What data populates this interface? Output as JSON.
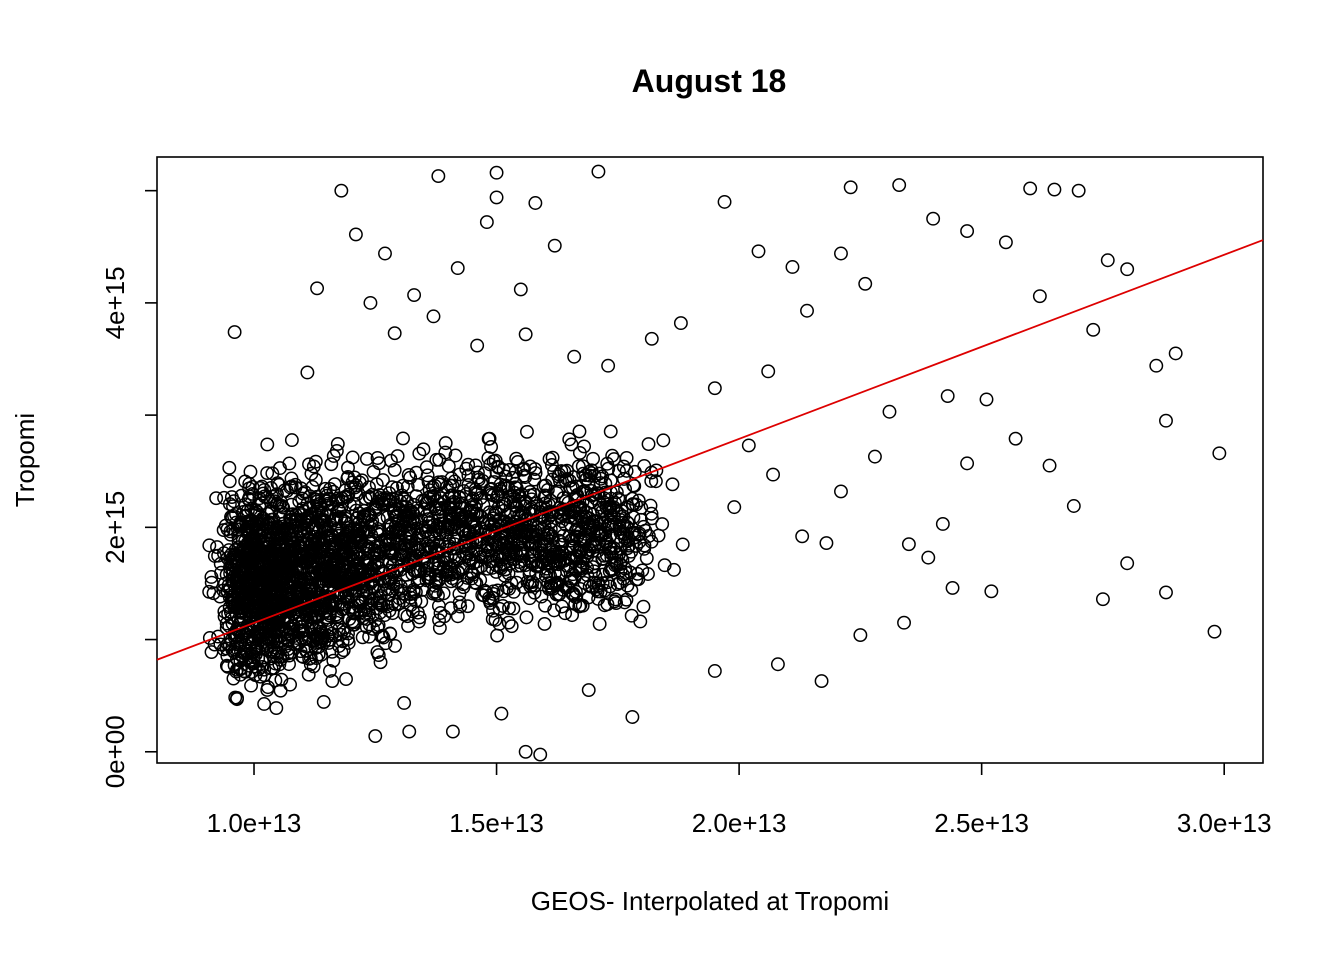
{
  "chart_data": {
    "type": "scatter",
    "title": "August 18",
    "xlabel": "GEOS- Interpolated at Tropomi",
    "ylabel": "Tropomi",
    "xlim": [
      8000000000000.0,
      30800000000000.0
    ],
    "ylim": [
      -100000000000000.0,
      5300000000000000.0
    ],
    "x_ticks": [
      {
        "value": 10000000000000.0,
        "label": "1.0e+13"
      },
      {
        "value": 15000000000000.0,
        "label": "1.5e+13"
      },
      {
        "value": 20000000000000.0,
        "label": "2.0e+13"
      },
      {
        "value": 25000000000000.0,
        "label": "2.5e+13"
      },
      {
        "value": 30000000000000.0,
        "label": "3.0e+13"
      }
    ],
    "y_ticks": [
      {
        "value": 0,
        "label": "0e+00"
      },
      {
        "value": 1000000000000000.0,
        "label": ""
      },
      {
        "value": 2000000000000000.0,
        "label": "2e+15"
      },
      {
        "value": 3000000000000000.0,
        "label": ""
      },
      {
        "value": 4000000000000000.0,
        "label": "4e+15"
      },
      {
        "value": 5000000000000000.0,
        "label": ""
      }
    ],
    "grid": false,
    "marker": "open-circle",
    "point_color": "#000000",
    "fit_line": {
      "color": "#dd0000",
      "x": [
        8000000000000.0,
        30800000000000.0
      ],
      "y": [
        820000000000000.0,
        4560000000000000.0
      ]
    },
    "points": [
      [
        9600000000000.0,
        3740000000000000.0
      ],
      [
        11800000000000.0,
        5000000000000000.0
      ],
      [
        12100000000000.0,
        4610000000000000.0
      ],
      [
        13800000000000.0,
        5130000000000000.0
      ],
      [
        15000000000000.0,
        5160000000000000.0
      ],
      [
        15000000000000.0,
        4940000000000000.0
      ],
      [
        17100000000000.0,
        5170000000000000.0
      ],
      [
        15800000000000.0,
        4890000000000000.0
      ],
      [
        14800000000000.0,
        4720000000000000.0
      ],
      [
        12700000000000.0,
        4440000000000000.0
      ],
      [
        11300000000000.0,
        4130000000000000.0
      ],
      [
        12400000000000.0,
        4000000000000000.0
      ],
      [
        13300000000000.0,
        4070000000000000.0
      ],
      [
        14200000000000.0,
        4310000000000000.0
      ],
      [
        15500000000000.0,
        4120000000000000.0
      ],
      [
        16200000000000.0,
        4510000000000000.0
      ],
      [
        13700000000000.0,
        3880000000000000.0
      ],
      [
        12900000000000.0,
        3730000000000000.0
      ],
      [
        14600000000000.0,
        3620000000000000.0
      ],
      [
        11100000000000.0,
        3380000000000000.0
      ],
      [
        15600000000000.0,
        3720000000000000.0
      ],
      [
        16600000000000.0,
        3520000000000000.0
      ],
      [
        17300000000000.0,
        3440000000000000.0
      ],
      [
        18200000000000.0,
        3680000000000000.0
      ],
      [
        18800000000000.0,
        3820000000000000.0
      ],
      [
        19700000000000.0,
        4900000000000000.0
      ],
      [
        20400000000000.0,
        4460000000000000.0
      ],
      [
        21100000000000.0,
        4320000000000000.0
      ],
      [
        21400000000000.0,
        3930000000000000.0
      ],
      [
        20600000000000.0,
        3390000000000000.0
      ],
      [
        19500000000000.0,
        3240000000000000.0
      ],
      [
        22300000000000.0,
        5030000000000000.0
      ],
      [
        22100000000000.0,
        4440000000000000.0
      ],
      [
        22600000000000.0,
        4170000000000000.0
      ],
      [
        23300000000000.0,
        5050000000000000.0
      ],
      [
        24000000000000.0,
        4750000000000000.0
      ],
      [
        24700000000000.0,
        4640000000000000.0
      ],
      [
        25500000000000.0,
        4540000000000000.0
      ],
      [
        26000000000000.0,
        5020000000000000.0
      ],
      [
        26500000000000.0,
        5010000000000000.0
      ],
      [
        27000000000000.0,
        5000000000000000.0
      ],
      [
        27600000000000.0,
        4380000000000000.0
      ],
      [
        28000000000000.0,
        4300000000000000.0
      ],
      [
        26200000000000.0,
        4060000000000000.0
      ],
      [
        27300000000000.0,
        3760000000000000.0
      ],
      [
        28600000000000.0,
        3440000000000000.0
      ],
      [
        29000000000000.0,
        3550000000000000.0
      ],
      [
        28800000000000.0,
        2950000000000000.0
      ],
      [
        29900000000000.0,
        2660000000000000.0
      ],
      [
        29800000000000.0,
        1070000000000000.0
      ],
      [
        27500000000000.0,
        1360000000000000.0
      ],
      [
        28800000000000.0,
        1420000000000000.0
      ],
      [
        28000000000000.0,
        1680000000000000.0
      ],
      [
        25200000000000.0,
        1430000000000000.0
      ],
      [
        24400000000000.0,
        1460000000000000.0
      ],
      [
        23900000000000.0,
        1730000000000000.0
      ],
      [
        23500000000000.0,
        1850000000000000.0
      ],
      [
        23400000000000.0,
        1150000000000000.0
      ],
      [
        22500000000000.0,
        1040000000000000.0
      ],
      [
        21700000000000.0,
        630000000000000.0
      ],
      [
        20800000000000.0,
        780000000000000.0
      ],
      [
        19500000000000.0,
        720000000000000.0
      ],
      [
        17800000000000.0,
        310000000000000.0
      ],
      [
        16900000000000.0,
        550000000000000.0
      ],
      [
        15900000000000.0,
        -25000000000000.0
      ],
      [
        15600000000000.0,
        0.0
      ],
      [
        15100000000000.0,
        340000000000000.0
      ],
      [
        14100000000000.0,
        180000000000000.0
      ],
      [
        13200000000000.0,
        180000000000000.0
      ],
      [
        12500000000000.0,
        140000000000000.0
      ],
      [
        22100000000000.0,
        2320000000000000.0
      ],
      [
        22800000000000.0,
        2630000000000000.0
      ],
      [
        23100000000000.0,
        3030000000000000.0
      ],
      [
        24300000000000.0,
        3170000000000000.0
      ],
      [
        25100000000000.0,
        3140000000000000.0
      ],
      [
        25700000000000.0,
        2790000000000000.0
      ],
      [
        26400000000000.0,
        2550000000000000.0
      ],
      [
        26900000000000.0,
        2190000000000000.0
      ],
      [
        24700000000000.0,
        2570000000000000.0
      ],
      [
        24200000000000.0,
        2030000000000000.0
      ],
      [
        21800000000000.0,
        1860000000000000.0
      ],
      [
        21300000000000.0,
        1920000000000000.0
      ],
      [
        20700000000000.0,
        2470000000000000.0
      ],
      [
        20200000000000.0,
        2730000000000000.0
      ],
      [
        19900000000000.0,
        2180000000000000.0
      ]
    ],
    "cloud_centers": [
      [
        10000000000000.0,
        1450000000000000.0
      ],
      [
        10700000000000.0,
        1550000000000000.0
      ],
      [
        11700000000000.0,
        1700000000000000.0
      ],
      [
        13000000000000.0,
        1850000000000000.0
      ],
      [
        14500000000000.0,
        2000000000000000.0
      ],
      [
        15800000000000.0,
        1900000000000000.0
      ],
      [
        17200000000000.0,
        2000000000000000.0
      ]
    ]
  }
}
